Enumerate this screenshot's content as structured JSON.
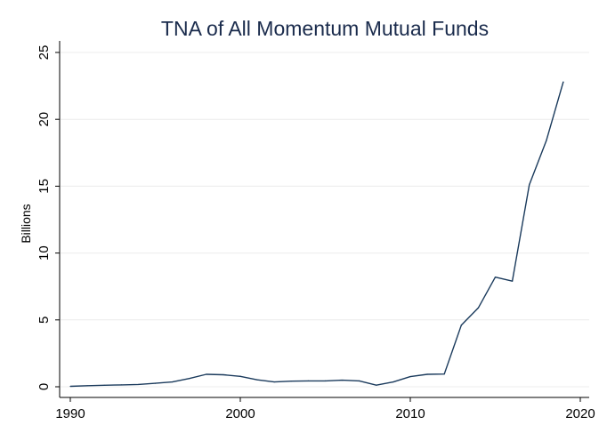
{
  "chart_data": {
    "type": "line",
    "title": "TNA of All Momentum Mutual Funds",
    "xlabel": "",
    "ylabel": "Billions",
    "xlim": [
      1990,
      2020
    ],
    "ylim": [
      0,
      25
    ],
    "xticks": [
      1990,
      2000,
      2010,
      2020
    ],
    "yticks": [
      0,
      5,
      10,
      15,
      20,
      25
    ],
    "grid": true,
    "legend": "none",
    "series": [
      {
        "color": "#1a3a5c",
        "x": [
          1990,
          1991,
          1992,
          1993,
          1994,
          1995,
          1996,
          1997,
          1998,
          1999,
          2000,
          2001,
          2002,
          2003,
          2004,
          2005,
          2006,
          2007,
          2008,
          2009,
          2010,
          2011,
          2012,
          2013,
          2014,
          2015,
          2016,
          2017,
          2018,
          2019
        ],
        "y": [
          0.03,
          0.08,
          0.11,
          0.14,
          0.17,
          0.26,
          0.36,
          0.62,
          0.93,
          0.9,
          0.78,
          0.52,
          0.36,
          0.42,
          0.44,
          0.44,
          0.49,
          0.44,
          0.12,
          0.36,
          0.76,
          0.93,
          0.95,
          4.6,
          5.9,
          8.2,
          7.9,
          15.1,
          18.4,
          22.8
        ]
      }
    ]
  },
  "colors": {
    "background": "#ffffff",
    "gridline": "#ececec",
    "axis": "#000000",
    "title": "#1a2b4c"
  }
}
